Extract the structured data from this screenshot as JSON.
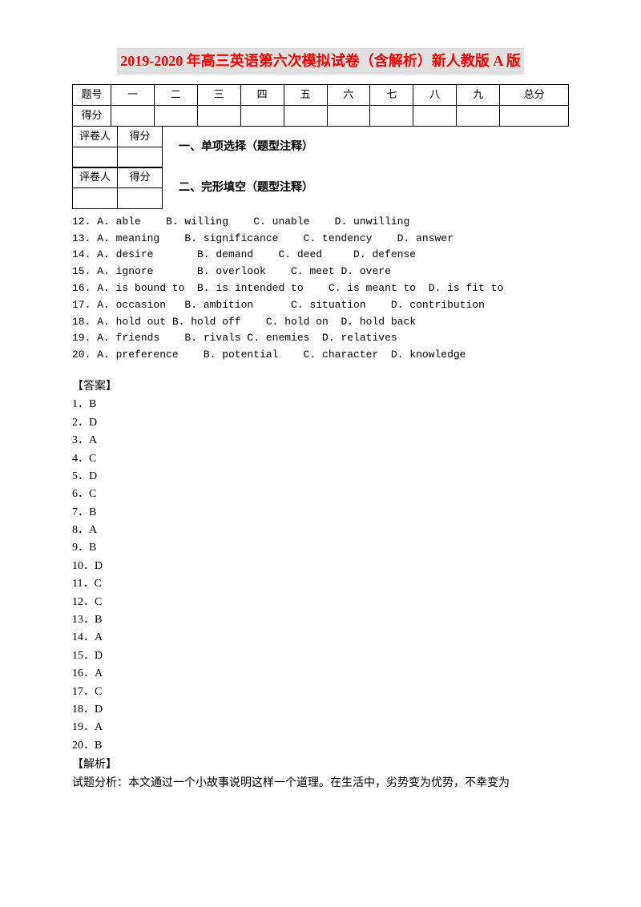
{
  "title": "2019-2020 年高三英语第六次模拟试卷（含解析）新人教版 A 版",
  "scoreTable": {
    "row1": [
      "题号",
      "一",
      "二",
      "三",
      "四",
      "五",
      "六",
      "七",
      "八",
      "九",
      "总分"
    ],
    "row2Label": "得分"
  },
  "graderTable": {
    "c1": "评卷人",
    "c2": "得分"
  },
  "section1": "一、单项选择（题型注释）",
  "section2": "二、完形填空（题型注释）",
  "q12": "12. A. able    B. willing    C. unable    D. unwilling",
  "q13": "13. A. meaning    B. significance    C. tendency    D. answer",
  "q14": "14. A. desire       B. demand    C. deed     D. defense",
  "q15": "15. A. ignore       B. overlook    C. meet D. overe",
  "q16": "16. A. is bound to  B. is intended to    C. is meant to  D. is fit to",
  "q17": "17. A. occasion   B. ambition      C. situation    D. contribution",
  "q18": "18. A. hold out B. hold off    C. hold on  D. hold back",
  "q19": "19. A. friends    B. rivals C. enemies  D. relatives",
  "q20": "20. A. preference    B. potential    C. character  D. knowledge",
  "answersHeading": "【答案】",
  "answers": [
    "1．B",
    "2．D",
    "3．A",
    "4．C",
    "5．D",
    "6．C",
    "7．B",
    "8．A",
    "9．B",
    "10．D",
    "11．C",
    "12．C",
    "13．B",
    "14．A",
    "15．D",
    "16．A",
    "17．C",
    "18．D",
    "19．A",
    "20．B"
  ],
  "analysisHeading": "【解析】",
  "analysisText": "试题分析：本文通过一个小故事说明这样一个道理。在生活中，劣势变为优势，不幸变为"
}
